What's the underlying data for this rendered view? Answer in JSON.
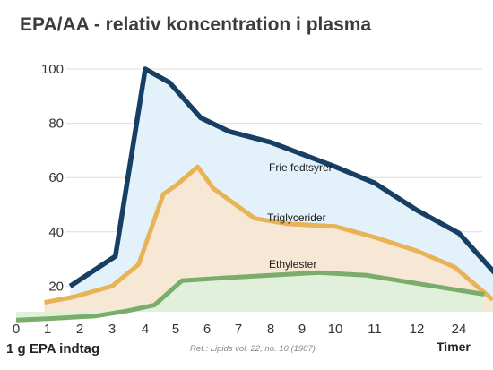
{
  "chart_data": {
    "type": "area",
    "title": "EPA/AA - relativ koncentration i plasma",
    "xlabel": "1 g EPA indtag",
    "x_unit_label": "Timer",
    "reference": "Ref.: Lipids vol. 22, no. 10 (1987)",
    "x_tick_labels": [
      "0",
      "1",
      "2",
      "3",
      "4",
      "5",
      "6",
      "7",
      "8",
      "9",
      "10",
      "11",
      "12",
      "24"
    ],
    "y_ticks": [
      100,
      80,
      60,
      40,
      20
    ],
    "ylim": [
      0,
      100
    ],
    "grid": true,
    "series": [
      {
        "name": "Frie fedtsyrer",
        "color": "#173e63",
        "fill": "#e3f1fb",
        "points": [
          [
            1.7,
            20
          ],
          [
            3.1,
            31
          ],
          [
            4.0,
            100
          ],
          [
            4.8,
            95
          ],
          [
            5.8,
            82
          ],
          [
            6.7,
            77
          ],
          [
            8,
            73
          ],
          [
            10,
            64
          ],
          [
            11,
            58
          ],
          [
            12,
            48
          ],
          [
            13,
            39.5
          ],
          [
            13.9,
            24
          ]
        ]
      },
      {
        "name": "Triglycerider",
        "color": "#e8b356",
        "fill": "#f7e8d6",
        "points": [
          [
            0.9,
            14
          ],
          [
            1.8,
            16
          ],
          [
            3,
            20
          ],
          [
            3.8,
            28
          ],
          [
            4.6,
            54
          ],
          [
            5,
            57
          ],
          [
            5.7,
            64
          ],
          [
            6.2,
            56
          ],
          [
            7.5,
            45
          ],
          [
            8.5,
            43
          ],
          [
            10,
            42
          ],
          [
            11,
            38
          ],
          [
            12,
            33
          ],
          [
            12.9,
            27
          ],
          [
            13.8,
            15
          ]
        ]
      },
      {
        "name": "Ethylester",
        "color": "#7aad6b",
        "fill": "#e0f0da",
        "points": [
          [
            0,
            7.5
          ],
          [
            1,
            8
          ],
          [
            2.5,
            9
          ],
          [
            3.5,
            11
          ],
          [
            4.3,
            13
          ],
          [
            5.2,
            22
          ],
          [
            6.5,
            23
          ],
          [
            8,
            24
          ],
          [
            9.5,
            25
          ],
          [
            10.8,
            24
          ],
          [
            12,
            21
          ],
          [
            13.6,
            17
          ]
        ]
      }
    ]
  }
}
